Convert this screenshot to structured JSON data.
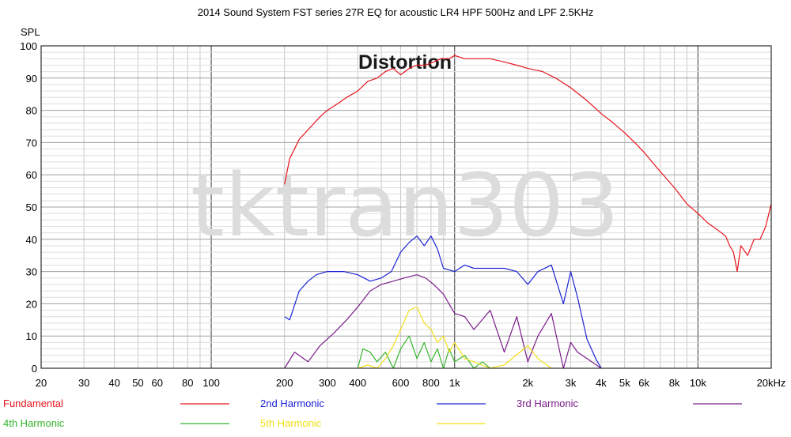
{
  "chart_data": {
    "type": "line",
    "title": "2014 Sound System FST series 27R EQ for acoustic LR4 HPF 500Hz and LPF 2.5KHz",
    "heading": "Distortion",
    "watermark": "tktran303",
    "ylabel": "SPL",
    "xscale": "log",
    "xlim": [
      20,
      20000
    ],
    "ylim": [
      0,
      100
    ],
    "grid": true,
    "legend_position": "bottom",
    "x_ticks": [
      {
        "value": 20,
        "label": "20"
      },
      {
        "value": 30,
        "label": "30"
      },
      {
        "value": 40,
        "label": "40"
      },
      {
        "value": 50,
        "label": "50"
      },
      {
        "value": 60,
        "label": "60"
      },
      {
        "value": 80,
        "label": "80"
      },
      {
        "value": 100,
        "label": "100"
      },
      {
        "value": 200,
        "label": "200"
      },
      {
        "value": 300,
        "label": "300"
      },
      {
        "value": 400,
        "label": "400"
      },
      {
        "value": 600,
        "label": "600"
      },
      {
        "value": 800,
        "label": "800"
      },
      {
        "value": 1000,
        "label": "1k"
      },
      {
        "value": 2000,
        "label": "2k"
      },
      {
        "value": 3000,
        "label": "3k"
      },
      {
        "value": 4000,
        "label": "4k"
      },
      {
        "value": 5000,
        "label": "5k"
      },
      {
        "value": 6000,
        "label": "6k"
      },
      {
        "value": 8000,
        "label": "8k"
      },
      {
        "value": 10000,
        "label": "10k"
      },
      {
        "value": 20000,
        "label": "20kHz"
      }
    ],
    "y_ticks": [
      {
        "value": 0,
        "label": "0"
      },
      {
        "value": 10,
        "label": "10"
      },
      {
        "value": 20,
        "label": "20"
      },
      {
        "value": 30,
        "label": "30"
      },
      {
        "value": 40,
        "label": "40"
      },
      {
        "value": 50,
        "label": "50"
      },
      {
        "value": 60,
        "label": "60"
      },
      {
        "value": 70,
        "label": "70"
      },
      {
        "value": 80,
        "label": "80"
      },
      {
        "value": 90,
        "label": "90"
      },
      {
        "value": 100,
        "label": "100"
      }
    ],
    "series": [
      {
        "name": "Fundamental",
        "color": "#e8141c",
        "x": [
          200,
          210,
          230,
          250,
          280,
          300,
          330,
          360,
          400,
          440,
          480,
          520,
          560,
          600,
          650,
          700,
          760,
          820,
          880,
          950,
          1000,
          1100,
          1200,
          1400,
          1600,
          1800,
          2000,
          2300,
          2600,
          3000,
          3500,
          4000,
          4500,
          5000,
          5500,
          6000,
          7000,
          8000,
          9000,
          10000,
          11000,
          12000,
          13000,
          13500,
          14000,
          14500,
          15000,
          16000,
          17000,
          18000,
          19000,
          20000
        ],
        "y": [
          57,
          65,
          71,
          74,
          78,
          80,
          82,
          84,
          86,
          89,
          90,
          92,
          93,
          91,
          93,
          94,
          94,
          95,
          96,
          96,
          97,
          96,
          96,
          96,
          95,
          94,
          93,
          92,
          90,
          87,
          83,
          79,
          76,
          73,
          70,
          67,
          61,
          56,
          51,
          48,
          45,
          43,
          41,
          38,
          36,
          30,
          38,
          35,
          40,
          40,
          44,
          51
        ]
      },
      {
        "name": "2nd Harmonic",
        "color": "#1c22d4",
        "x": [
          200,
          210,
          230,
          250,
          270,
          300,
          350,
          400,
          450,
          500,
          550,
          600,
          650,
          700,
          750,
          800,
          850,
          900,
          1000,
          1100,
          1200,
          1400,
          1600,
          1800,
          2000,
          2200,
          2500,
          2800,
          3000,
          3200,
          3500,
          3800,
          4000
        ],
        "y": [
          16,
          15,
          24,
          27,
          29,
          30,
          30,
          29,
          27,
          28,
          30,
          36,
          39,
          41,
          38,
          41,
          37,
          31,
          30,
          32,
          31,
          31,
          31,
          30,
          26,
          30,
          32,
          20,
          30,
          22,
          9,
          3,
          0
        ]
      },
      {
        "name": "3rd Harmonic",
        "color": "#7a1c8a",
        "x": [
          200,
          220,
          250,
          280,
          320,
          360,
          400,
          450,
          500,
          560,
          620,
          700,
          760,
          820,
          900,
          1000,
          1100,
          1200,
          1400,
          1600,
          1800,
          2000,
          2200,
          2500,
          2800,
          3000,
          3200,
          3500,
          4000
        ],
        "y": [
          0,
          5,
          2,
          7,
          11,
          15,
          19,
          24,
          26,
          27,
          28,
          29,
          28,
          26,
          23,
          17,
          16,
          12,
          18,
          5,
          16,
          2,
          10,
          17,
          0,
          8,
          5,
          3,
          0
        ]
      },
      {
        "name": "4th Harmonic",
        "color": "#33b52b",
        "x": [
          400,
          420,
          450,
          480,
          520,
          560,
          600,
          650,
          700,
          750,
          800,
          850,
          900,
          950,
          1000,
          1100,
          1200,
          1300,
          1400
        ],
        "y": [
          0,
          6,
          5,
          2,
          5,
          0,
          6,
          10,
          3,
          8,
          2,
          6,
          0,
          6,
          2,
          4,
          0,
          2,
          0
        ]
      },
      {
        "name": "5th Harmonic",
        "color": "#f2e01a",
        "x": [
          400,
          440,
          480,
          520,
          560,
          600,
          650,
          700,
          750,
          800,
          850,
          900,
          950,
          1000,
          1100,
          1200,
          1400,
          1600,
          2000,
          2200,
          2500
        ],
        "y": [
          0,
          1,
          0,
          3,
          7,
          12,
          18,
          19,
          14,
          12,
          8,
          10,
          5,
          8,
          3,
          2,
          0,
          1,
          7,
          3,
          0
        ]
      }
    ]
  }
}
